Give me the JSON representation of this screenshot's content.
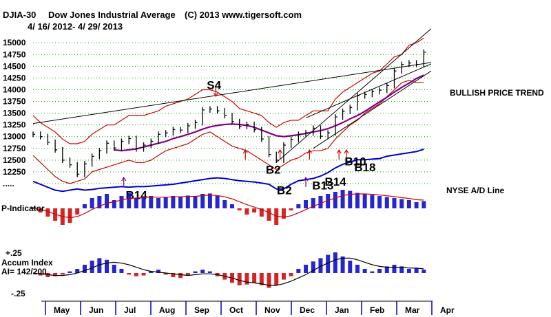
{
  "header": {
    "symbol": "DJIA-30",
    "name": "Dow Jones Industrial Average",
    "copyright": "(C) 2013 www.tigersoft.com",
    "date_range": "4/ 16/ 2012- 4/ 29/ 2013"
  },
  "colors": {
    "price": "#000000",
    "band": "#cc0000",
    "ma": "#800080",
    "ad_line": "#0000cc",
    "positive_bar": "#0000cc",
    "negative_bar": "#cc0000",
    "grid": "#00aa00",
    "arrow": "#cc0000"
  },
  "chart_data": [
    {
      "type": "line",
      "panel": "price",
      "title": "DJIA-30 Dow Jones Industrial Average",
      "ylim": [
        12000,
        15150
      ],
      "yticks": [
        "15000",
        "14750",
        "14500",
        "14250",
        "14000",
        "13750",
        "13500",
        "13250",
        "13000",
        "12750",
        "12500",
        "12250",
        "....."
      ],
      "ytick_values": [
        15000,
        14750,
        14500,
        14250,
        14000,
        13750,
        13500,
        13250,
        13000,
        12750,
        12500,
        12250,
        12000
      ],
      "xlim": [
        0,
        54
      ],
      "x": [
        0,
        1,
        2,
        3,
        4,
        5,
        6,
        7,
        8,
        9,
        10,
        11,
        12,
        13,
        14,
        15,
        16,
        17,
        18,
        19,
        20,
        21,
        22,
        23,
        24,
        25,
        26,
        27,
        28,
        29,
        30,
        31,
        32,
        33,
        34,
        35,
        36,
        37,
        38,
        39,
        40,
        41,
        42,
        43,
        44,
        45,
        46,
        47,
        48,
        49,
        50,
        51,
        52,
        53
      ],
      "series": [
        {
          "name": "DJIA",
          "values": [
            13050,
            13000,
            12880,
            12720,
            12500,
            12400,
            12200,
            12420,
            12580,
            12700,
            12860,
            12760,
            12900,
            12960,
            12740,
            12820,
            12900,
            13050,
            13080,
            13150,
            13140,
            13230,
            13300,
            13570,
            13590,
            13550,
            13450,
            13320,
            13220,
            13260,
            13150,
            12950,
            12620,
            12500,
            12820,
            12940,
            13050,
            13080,
            13180,
            13010,
            13080,
            13420,
            13540,
            13620,
            13870,
            13900,
            13960,
            13990,
            14090,
            14400,
            14540,
            14570,
            14540,
            14800
          ]
        },
        {
          "name": "Upper Band",
          "values": [
            13450,
            13300,
            13200,
            13100,
            12950,
            12850,
            12850,
            12900,
            13050,
            13150,
            13250,
            13250,
            13350,
            13450,
            13450,
            13450,
            13500,
            13550,
            13650,
            13700,
            13750,
            13800,
            13900,
            14000,
            14000,
            13950,
            13850,
            13750,
            13600,
            13550,
            13500,
            13450,
            13300,
            13200,
            13300,
            13350,
            13350,
            13450,
            13550,
            13550,
            13550,
            13800,
            13950,
            14050,
            14150,
            14250,
            14350,
            14400,
            14550,
            14700,
            14750,
            14950,
            15000,
            15100
          ]
        },
        {
          "name": "Lower Band",
          "values": [
            12600,
            12450,
            12300,
            12150,
            12050,
            12000,
            12050,
            12100,
            12250,
            12300,
            12350,
            12400,
            12450,
            12500,
            12450,
            12450,
            12500,
            12600,
            12700,
            12750,
            12800,
            12850,
            12950,
            13050,
            13100,
            13000,
            12900,
            12800,
            12750,
            12700,
            12600,
            12500,
            12400,
            12300,
            12400,
            12500,
            12550,
            12650,
            12700,
            12700,
            12750,
            12950,
            13100,
            13250,
            13350,
            13500,
            13600,
            13700,
            13850,
            14000,
            14150,
            14200,
            14150,
            14150
          ]
        },
        {
          "name": "50-day MA",
          "values": [
            null,
            null,
            null,
            null,
            null,
            null,
            null,
            null,
            null,
            null,
            null,
            12720,
            12700,
            12720,
            12740,
            12780,
            12820,
            12860,
            12900,
            12960,
            13000,
            13050,
            13100,
            13160,
            13210,
            13240,
            13260,
            13270,
            13260,
            13240,
            13200,
            13140,
            13080,
            13020,
            13000,
            13020,
            13040,
            13070,
            13100,
            13130,
            13170,
            13230,
            13300,
            13380,
            13450,
            13540,
            13640,
            13740,
            13840,
            13950,
            14050,
            14140,
            14240,
            14310
          ]
        }
      ],
      "trendlines": [
        {
          "from": [
            0,
            13280
          ],
          "to": [
            54,
            14580
          ]
        },
        {
          "from": [
            37,
            13400
          ],
          "to": [
            54,
            14550
          ]
        },
        {
          "from": [
            33,
            12450
          ],
          "to": [
            54,
            15300
          ]
        },
        {
          "from": [
            38,
            12750
          ],
          "to": [
            54,
            14400
          ]
        }
      ],
      "signals": [
        {
          "label": "S4",
          "x": 24.5,
          "y": 13750
        },
        {
          "label": "B2",
          "x": 32.5,
          "y": 12450
        },
        {
          "label": "B10",
          "x": 43.2,
          "y": 12620
        },
        {
          "label": "B18",
          "x": 44.5,
          "y": 12500
        }
      ],
      "up_arrows_x": [
        28.8,
        33.5,
        37.5,
        41.5,
        42.5
      ]
    },
    {
      "type": "line",
      "panel": "ad_line",
      "title": "NYSE A/D Line",
      "ylim": [
        0,
        100
      ],
      "x": [
        0,
        1,
        2,
        3,
        4,
        5,
        6,
        7,
        8,
        9,
        10,
        11,
        12,
        13,
        14,
        15,
        16,
        17,
        18,
        19,
        20,
        21,
        22,
        23,
        24,
        25,
        26,
        27,
        28,
        29,
        30,
        31,
        32,
        33,
        34,
        35,
        36,
        37,
        38,
        39,
        40,
        41,
        42,
        43,
        44,
        45,
        46,
        47,
        48,
        49,
        50,
        51,
        52,
        53
      ],
      "values": [
        25,
        20,
        15,
        10,
        8,
        10,
        12,
        10,
        11,
        13,
        14,
        15,
        16,
        15,
        16,
        16,
        17,
        18,
        19,
        20,
        22,
        24,
        26,
        28,
        30,
        31,
        30,
        28,
        26,
        25,
        24,
        22,
        20,
        12,
        12,
        20,
        26,
        28,
        30,
        34,
        40,
        48,
        54,
        58,
        62,
        62,
        63,
        64,
        68,
        70,
        72,
        74,
        76,
        80
      ],
      "signals": [
        {
          "label": "B14",
          "x": 13.5,
          "y": 2
        },
        {
          "label": "B2",
          "x": 34.0,
          "y": 10
        },
        {
          "label": "B13",
          "x": 38.8,
          "y": 18
        },
        {
          "label": "B14",
          "x": 40.5,
          "y": 25
        }
      ],
      "up_arrows_x": [
        12.3,
        37.0
      ]
    },
    {
      "type": "bar",
      "panel": "p_indicator",
      "title": "P-Indicator",
      "ylim": [
        -100,
        100
      ],
      "x": [
        0,
        1,
        2,
        3,
        4,
        5,
        6,
        7,
        8,
        9,
        10,
        11,
        12,
        13,
        14,
        15,
        16,
        17,
        18,
        19,
        20,
        21,
        22,
        23,
        24,
        25,
        26,
        27,
        28,
        29,
        30,
        31,
        32,
        33,
        34,
        35,
        36,
        37,
        38,
        39,
        40,
        41,
        42,
        43,
        44,
        45,
        46,
        47,
        48,
        49,
        50,
        51,
        52,
        53
      ],
      "values": [
        5,
        -20,
        -40,
        -60,
        -80,
        -70,
        -30,
        20,
        50,
        60,
        70,
        40,
        60,
        75,
        50,
        55,
        60,
        50,
        55,
        60,
        58,
        62,
        60,
        70,
        72,
        60,
        40,
        20,
        -10,
        -30,
        -20,
        -40,
        -60,
        -80,
        -50,
        -10,
        20,
        40,
        50,
        60,
        70,
        80,
        90,
        85,
        75,
        70,
        65,
        60,
        55,
        50,
        45,
        40,
        30,
        35
      ],
      "signal_line": [
        0,
        -5,
        -15,
        -28,
        -40,
        -45,
        -40,
        -25,
        -5,
        10,
        25,
        32,
        40,
        48,
        50,
        52,
        55,
        54,
        54,
        56,
        56,
        58,
        58,
        62,
        64,
        62,
        56,
        46,
        32,
        18,
        6,
        -6,
        -20,
        -38,
        -42,
        -36,
        -22,
        -6,
        10,
        24,
        38,
        50,
        62,
        68,
        70,
        70,
        68,
        65,
        61,
        57,
        52,
        48,
        42,
        40
      ]
    },
    {
      "type": "bar",
      "panel": "accum_index",
      "title": "Accum Index",
      "subtitle": "AI= 142/200",
      "yticks": [
        "+.25",
        "-.25"
      ],
      "ylim": [
        -0.25,
        0.25
      ],
      "x": [
        0,
        1,
        2,
        3,
        4,
        5,
        6,
        7,
        8,
        9,
        10,
        11,
        12,
        13,
        14,
        15,
        16,
        17,
        18,
        19,
        20,
        21,
        22,
        23,
        24,
        25,
        26,
        27,
        28,
        29,
        30,
        31,
        32,
        33,
        34,
        35,
        36,
        37,
        38,
        39,
        40,
        41,
        42,
        43,
        44,
        45,
        46,
        47,
        48,
        49,
        50,
        51,
        52,
        53
      ],
      "values": [
        0,
        -0.03,
        -0.05,
        -0.04,
        -0.02,
        0.02,
        0.05,
        0.1,
        0.15,
        0.18,
        0.16,
        0.1,
        0.05,
        -0.02,
        -0.04,
        -0.03,
        0.02,
        0.04,
        -0.02,
        -0.05,
        -0.06,
        -0.03,
        0.02,
        0.04,
        0.02,
        -0.04,
        -0.08,
        -0.12,
        -0.15,
        -0.14,
        -0.12,
        -0.15,
        -0.18,
        -0.15,
        -0.08,
        -0.04,
        0.05,
        0.1,
        0.14,
        0.18,
        0.22,
        0.25,
        0.2,
        0.15,
        0.1,
        0.05,
        0.02,
        0.05,
        0.08,
        0.1,
        0.08,
        0.05,
        0.06,
        0.04
      ],
      "signal_line": [
        0,
        -0.01,
        -0.02,
        -0.03,
        -0.03,
        -0.02,
        0.0,
        0.03,
        0.06,
        0.1,
        0.12,
        0.13,
        0.12,
        0.1,
        0.07,
        0.04,
        0.02,
        0.01,
        0.0,
        -0.01,
        -0.02,
        -0.03,
        -0.02,
        -0.01,
        -0.01,
        -0.02,
        -0.04,
        -0.06,
        -0.09,
        -0.11,
        -0.12,
        -0.13,
        -0.15,
        -0.15,
        -0.13,
        -0.1,
        -0.06,
        -0.02,
        0.03,
        0.08,
        0.12,
        0.16,
        0.18,
        0.18,
        0.16,
        0.13,
        0.1,
        0.08,
        0.07,
        0.07,
        0.07,
        0.06,
        0.06,
        0.05
      ]
    }
  ],
  "x_axis": {
    "months": [
      "May",
      "Jun",
      "Jul",
      "Aug",
      "Sep",
      "Oct",
      "Nov",
      "Dec",
      "Jan",
      "Feb",
      "Mar",
      "Apr"
    ]
  },
  "annotations": {
    "trend": "BULLISH PRICE TREND",
    "ad_label": "NYSE A/D Line"
  }
}
